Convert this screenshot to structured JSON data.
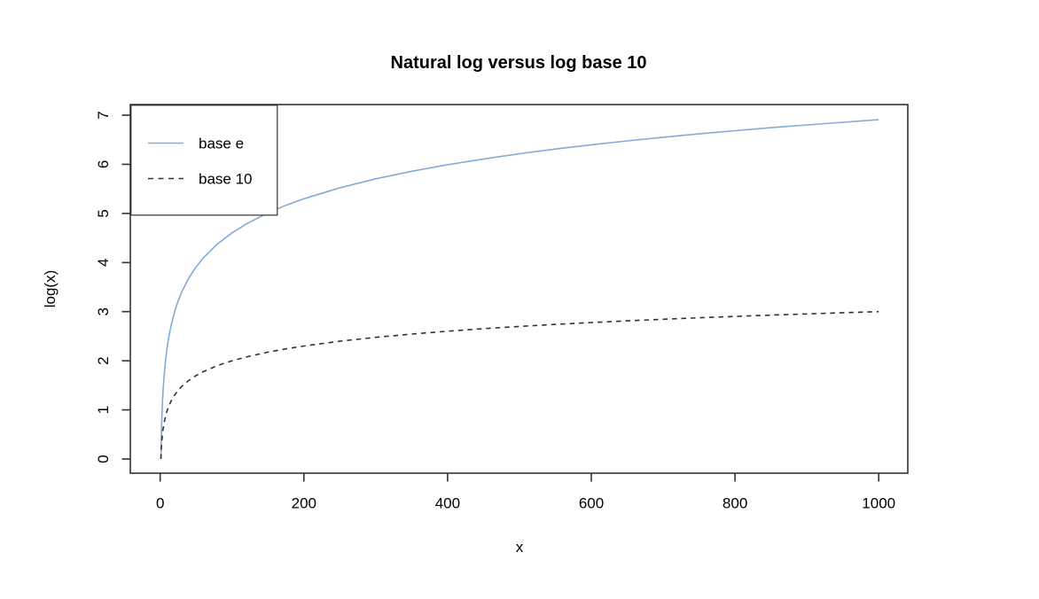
{
  "chart_data": {
    "type": "line",
    "title": "Natural log versus log base 10",
    "xlabel": "x",
    "ylabel": "log(x)",
    "xlim": [
      0,
      1000
    ],
    "ylim": [
      0,
      7
    ],
    "x_ticks": [
      0,
      200,
      400,
      600,
      800,
      1000
    ],
    "y_ticks": [
      0,
      1,
      2,
      3,
      4,
      5,
      6,
      7
    ],
    "grid": false,
    "legend_position": "topleft",
    "x": [
      1,
      1.2,
      1.5,
      2,
      2.5,
      3,
      4,
      5,
      6,
      8,
      10,
      12,
      15,
      20,
      25,
      30,
      40,
      50,
      60,
      80,
      100,
      120,
      150,
      175,
      200,
      250,
      300,
      350,
      400,
      450,
      500,
      550,
      600,
      650,
      700,
      750,
      800,
      850,
      900,
      950,
      1000
    ],
    "series": [
      {
        "name": "base e",
        "style": "solid",
        "color": "#82abd6",
        "values": [
          0,
          0.182,
          0.405,
          0.693,
          0.916,
          1.099,
          1.386,
          1.609,
          1.792,
          2.079,
          2.303,
          2.485,
          2.708,
          2.996,
          3.219,
          3.401,
          3.689,
          3.912,
          4.094,
          4.382,
          4.605,
          4.787,
          5.011,
          5.165,
          5.298,
          5.521,
          5.704,
          5.858,
          5.991,
          6.109,
          6.215,
          6.31,
          6.397,
          6.477,
          6.551,
          6.62,
          6.685,
          6.745,
          6.802,
          6.856,
          6.908
        ]
      },
      {
        "name": "base 10",
        "style": "dashed",
        "color": "#333333",
        "values": [
          0,
          0.079,
          0.176,
          0.301,
          0.398,
          0.477,
          0.602,
          0.699,
          0.778,
          0.903,
          1.0,
          1.079,
          1.176,
          1.301,
          1.398,
          1.477,
          1.602,
          1.699,
          1.778,
          1.903,
          2.0,
          2.079,
          2.176,
          2.243,
          2.301,
          2.398,
          2.477,
          2.544,
          2.602,
          2.653,
          2.699,
          2.74,
          2.778,
          2.813,
          2.845,
          2.875,
          2.903,
          2.929,
          2.954,
          2.978,
          3.0
        ]
      }
    ]
  },
  "colors": {
    "frame": "#333333",
    "tick": "#333333",
    "text": "#000000",
    "background": "#ffffff"
  }
}
